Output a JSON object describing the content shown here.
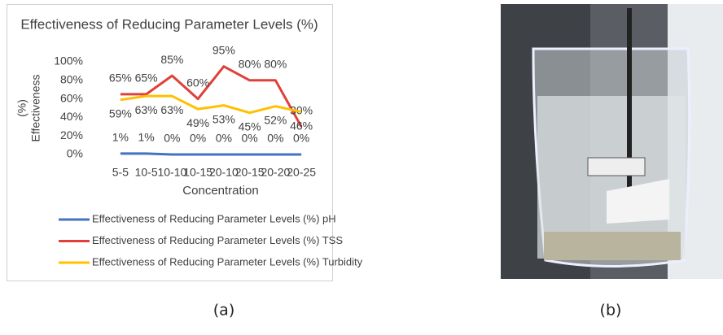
{
  "chart_data": {
    "type": "line",
    "title": "Effectiveness of Reducing Parameter Levels (%)",
    "xlabel": "Concentration",
    "ylabel": [
      "(%)",
      "Effectiveness"
    ],
    "categories": [
      "5-5",
      "10-5",
      "10-10",
      "10-15",
      "20-10",
      "20-15",
      "20-20",
      "20-25"
    ],
    "series": [
      {
        "name": "Effectiveness of Reducing Parameter Levels (%) pH",
        "color": "#4472c4",
        "values": [
          1,
          1,
          0,
          0,
          0,
          0,
          0,
          0
        ],
        "value_labels": [
          "1%",
          "1%",
          "0%",
          "0%",
          "0%",
          "0%",
          "0%",
          "0%"
        ]
      },
      {
        "name": "Effectiveness of Reducing Parameter Levels (%) TSS",
        "color": "#e0403a",
        "values": [
          65,
          65,
          85,
          60,
          95,
          80,
          80,
          30
        ],
        "value_labels": [
          "65%",
          "65%",
          "85%",
          "60%",
          "95%",
          "80%",
          "80%",
          "30%"
        ]
      },
      {
        "name": "Effectiveness of Reducing Parameter Levels (%) Turbidity",
        "color": "#ffc000",
        "values": [
          59,
          63,
          63,
          49,
          53,
          45,
          52,
          46
        ],
        "value_labels": [
          "59%",
          "63%",
          "63%",
          "49%",
          "53%",
          "45%",
          "52%",
          "46%"
        ]
      }
    ],
    "ylim": [
      0,
      100
    ],
    "yticks": [
      {
        "value": 0,
        "label": "0%"
      },
      {
        "value": 20,
        "label": "20%"
      },
      {
        "value": 40,
        "label": "40%"
      },
      {
        "value": 60,
        "label": "60%"
      },
      {
        "value": 80,
        "label": "80%"
      },
      {
        "value": 100,
        "label": "100%"
      }
    ],
    "grid": false,
    "legend": "bottom"
  },
  "captions": [
    "(a)",
    "(b)"
  ]
}
